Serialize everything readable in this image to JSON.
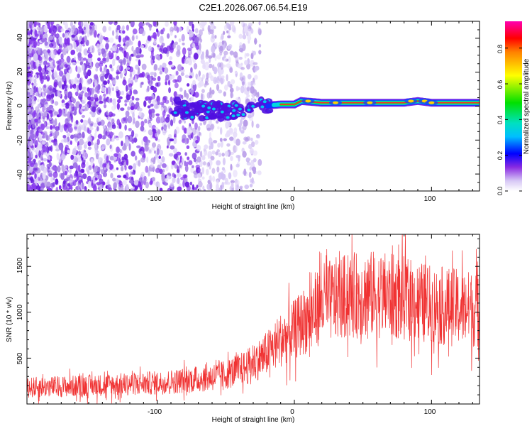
{
  "title": "C2E1.2026.067.06.54.E19",
  "chart_data": [
    {
      "type": "heatmap",
      "panel": "top",
      "xlabel": "Height of straight line (km)",
      "ylabel": "Frequency (Hz)",
      "xlim": [
        -195,
        135
      ],
      "ylim": [
        -50,
        50
      ],
      "xticks": [
        -100,
        0,
        100
      ],
      "xtick_labels": [
        "-100",
        "0",
        "100"
      ],
      "yticks": [
        -40,
        -20,
        0,
        20,
        40
      ],
      "ytick_labels": [
        "-40",
        "-20",
        "0",
        "20",
        "40"
      ],
      "colorbar": {
        "label": "Normalized spectral amplitude",
        "range": [
          0,
          0.95
        ],
        "ticks": [
          0.0,
          0.2,
          0.4,
          0.6,
          0.8
        ],
        "tick_labels": [
          "0.0",
          "0.2",
          "0.4",
          "0.6",
          "0.8"
        ]
      },
      "trace": {
        "description_free_points": true,
        "ridge_height_km": [
          -90,
          -80,
          -60,
          -40,
          -25,
          -10,
          0,
          5,
          20,
          50,
          80,
          90,
          100,
          135
        ],
        "ridge_freq_hz": [
          0,
          -2,
          -3,
          -3,
          0,
          1,
          1,
          3,
          2,
          2,
          2,
          3,
          2,
          2
        ]
      }
    },
    {
      "type": "line",
      "panel": "bottom",
      "xlabel": "Height of straight line (km)",
      "ylabel": "SNR (10 * v/v)",
      "xlim": [
        -195,
        135
      ],
      "ylim": [
        0,
        1850
      ],
      "xticks": [
        -100,
        0,
        100
      ],
      "xtick_labels": [
        "-100",
        "0",
        "100"
      ],
      "yticks": [
        500,
        1000,
        1500
      ],
      "ytick_labels": [
        "500",
        "1000",
        "1500"
      ],
      "color": "#f03232",
      "envelope_x": [
        -195,
        -150,
        -100,
        -70,
        -50,
        -35,
        -20,
        -10,
        0,
        10,
        20,
        40,
        60,
        80,
        100,
        120,
        135
      ],
      "envelope_mean": [
        180,
        200,
        230,
        270,
        320,
        400,
        550,
        700,
        800,
        950,
        1100,
        1180,
        1200,
        1150,
        1080,
        1050,
        1030
      ]
    }
  ]
}
